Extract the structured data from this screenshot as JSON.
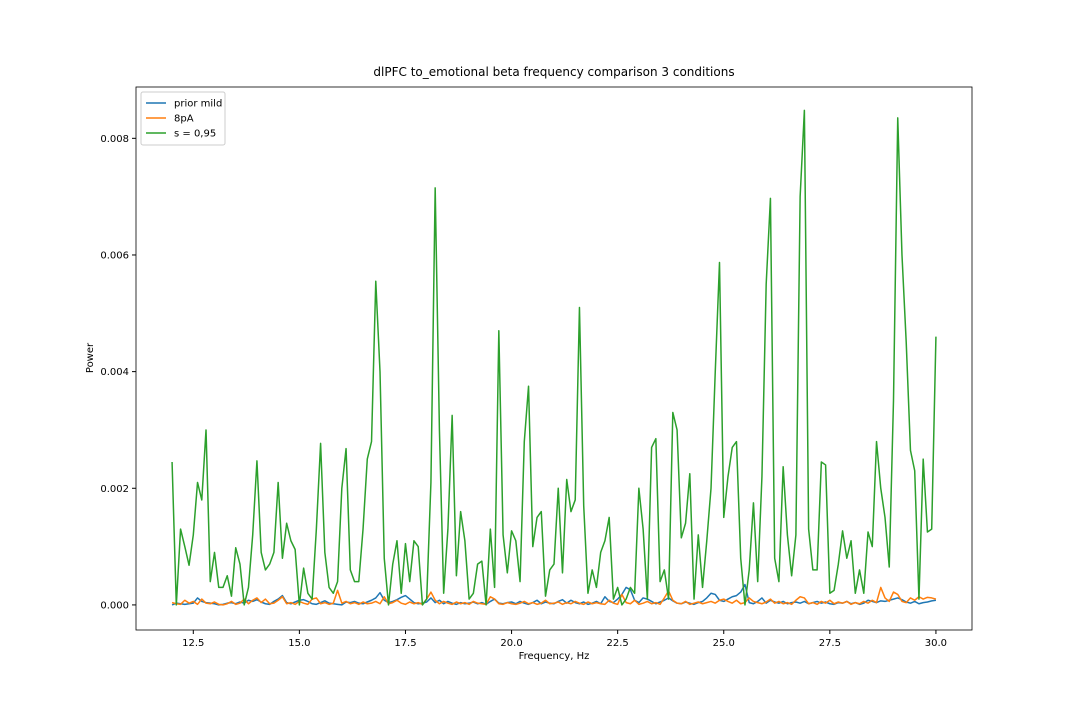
{
  "chart_data": {
    "type": "line",
    "title": "dlPFC to_emotional beta frequency comparison 3 conditions",
    "xlabel": "Frequency, Hz",
    "ylabel": "Power",
    "legend": "upper left",
    "grid": false,
    "xlim": [
      11.15,
      30.85
    ],
    "ylim": [
      -0.00043,
      0.00888
    ],
    "xticks": [
      12.5,
      {
        "value": 15,
        "label": "15.0"
      },
      17.5,
      {
        "value": 20,
        "label": "20.0"
      },
      22.5,
      {
        "value": 25,
        "label": "25.0"
      },
      27.5,
      {
        "value": 30,
        "label": "30.0"
      }
    ],
    "yticks": [
      {
        "value": 0,
        "label": "0.000"
      },
      {
        "value": 0.002,
        "label": "0.002"
      },
      {
        "value": 0.004,
        "label": "0.004"
      },
      {
        "value": 0.006,
        "label": "0.006"
      },
      {
        "value": 0.008,
        "label": "0.008"
      }
    ],
    "x": [
      12,
      12.1,
      12.2,
      12.3,
      12.4,
      12.5,
      12.6,
      12.7,
      12.8,
      12.9,
      13,
      13.1,
      13.2,
      13.3,
      13.4,
      13.5,
      13.6,
      13.7,
      13.8,
      13.9,
      14,
      14.1,
      14.2,
      14.3,
      14.4,
      14.5,
      14.6,
      14.7,
      14.8,
      14.9,
      15,
      15.1,
      15.2,
      15.3,
      15.4,
      15.5,
      15.6,
      15.7,
      15.8,
      15.9,
      16,
      16.1,
      16.2,
      16.3,
      16.4,
      16.5,
      16.6,
      16.7,
      16.8,
      16.9,
      17,
      17.1,
      17.2,
      17.3,
      17.4,
      17.5,
      17.6,
      17.7,
      17.8,
      17.9,
      18,
      18.1,
      18.2,
      18.3,
      18.4,
      18.5,
      18.6,
      18.7,
      18.8,
      18.9,
      19,
      19.1,
      19.2,
      19.3,
      19.4,
      19.5,
      19.6,
      19.7,
      19.8,
      19.9,
      20,
      20.1,
      20.2,
      20.3,
      20.4,
      20.5,
      20.6,
      20.7,
      20.8,
      20.9,
      21,
      21.1,
      21.2,
      21.3,
      21.4,
      21.5,
      21.6,
      21.7,
      21.8,
      21.9,
      22,
      22.1,
      22.2,
      22.3,
      22.4,
      22.5,
      22.6,
      22.7,
      22.8,
      22.9,
      23,
      23.1,
      23.2,
      23.3,
      23.4,
      23.5,
      23.6,
      23.7,
      23.8,
      23.9,
      24,
      24.1,
      24.2,
      24.3,
      24.4,
      24.5,
      24.6,
      24.7,
      24.8,
      24.9,
      25,
      25.1,
      25.2,
      25.3,
      25.4,
      25.5,
      25.6,
      25.7,
      25.8,
      25.9,
      26,
      26.1,
      26.2,
      26.3,
      26.4,
      26.5,
      26.6,
      26.7,
      26.8,
      26.9,
      27,
      27.1,
      27.2,
      27.3,
      27.4,
      27.5,
      27.6,
      27.7,
      27.8,
      27.9,
      28,
      28.1,
      28.2,
      28.3,
      28.4,
      28.5,
      28.6,
      28.7,
      28.8,
      28.9,
      29,
      29.1,
      29.2,
      29.3,
      29.4,
      29.5,
      29.6,
      29.7,
      29.8,
      29.9,
      30
    ],
    "series": [
      {
        "name": "prior mild",
        "color": "#1f77b4",
        "values": [
          0,
          3e-05,
          2e-05,
          1e-05,
          2e-05,
          3e-05,
          0.00012,
          6e-05,
          4e-05,
          3e-05,
          2e-05,
          0,
          1e-05,
          3e-05,
          4e-05,
          2e-05,
          5e-05,
          3e-05,
          8e-05,
          6e-05,
          9e-05,
          5e-05,
          2e-05,
          1e-05,
          6e-05,
          0.0001,
          0.00016,
          4e-05,
          2e-05,
          5e-05,
          8e-05,
          9e-05,
          6e-05,
          2e-05,
          1e-05,
          4e-05,
          7e-05,
          3e-05,
          2e-05,
          1e-05,
          0,
          5e-05,
          4e-05,
          6e-05,
          3e-05,
          2e-05,
          5e-05,
          8e-05,
          0.00012,
          0.00021,
          8e-05,
          4e-05,
          6e-05,
          9e-05,
          0.00013,
          0.00016,
          0.0001,
          4e-05,
          2e-05,
          3e-05,
          5e-05,
          0.00012,
          4e-05,
          8e-05,
          2e-05,
          6e-05,
          3e-05,
          1e-05,
          4e-05,
          2e-05,
          3e-05,
          5e-05,
          2e-05,
          4e-05,
          1e-05,
          6e-05,
          0.0001,
          3e-05,
          2e-05,
          4e-05,
          5e-05,
          2e-05,
          6e-05,
          3e-05,
          1e-05,
          4e-05,
          8e-05,
          2e-05,
          5e-05,
          3e-05,
          2e-05,
          6e-05,
          9e-05,
          3e-05,
          8e-05,
          4e-05,
          2e-05,
          5e-05,
          1e-05,
          3e-05,
          6e-05,
          2e-05,
          0.00014,
          6e-05,
          4e-05,
          0.0001,
          0.00018,
          0.0003,
          0.00026,
          8e-05,
          4e-05,
          0.00012,
          0.0001,
          6e-05,
          2e-05,
          5e-05,
          8e-05,
          0.00012,
          7e-05,
          3e-05,
          2e-05,
          5e-05,
          3e-05,
          1e-05,
          4e-05,
          6e-05,
          0.00012,
          0.0002,
          0.00018,
          8e-05,
          6e-05,
          0.0001,
          0.00014,
          0.00016,
          0.00022,
          0.00035,
          4e-05,
          2e-05,
          6e-05,
          0.00012,
          3e-05,
          8e-05,
          5e-05,
          3e-05,
          6e-05,
          2e-05,
          4e-05,
          5e-05,
          3e-05,
          6e-05,
          2e-05,
          4e-05,
          6e-05,
          3e-05,
          5e-05,
          2e-05,
          1e-05,
          4e-05,
          3e-05,
          6e-05,
          2e-05,
          4e-05,
          1e-05,
          3e-05,
          8e-05,
          6e-05,
          4e-05,
          7e-05,
          6e-05,
          8e-05,
          0.0001,
          0.00012,
          9e-05,
          5e-05,
          3e-05,
          6e-05,
          2e-05,
          4e-05,
          5e-05,
          7e-05,
          8e-05
        ]
      },
      {
        "name": "8pA",
        "color": "#ff7f0e",
        "values": [
          4e-05,
          2e-05,
          1e-05,
          8e-05,
          3e-05,
          6e-05,
          1e-05,
          0.0001,
          3e-05,
          2e-05,
          5e-05,
          1e-05,
          0,
          2e-05,
          6e-05,
          1e-05,
          3e-05,
          0.0001,
          2e-05,
          8e-05,
          0.00012,
          4e-05,
          0.0001,
          2e-05,
          3e-05,
          8e-05,
          0.00014,
          2e-05,
          4e-05,
          1e-05,
          6e-05,
          3e-05,
          1e-05,
          0.0001,
          0.00012,
          2e-05,
          4e-05,
          1e-05,
          3e-05,
          0.00025,
          3e-05,
          6e-05,
          2e-05,
          4e-05,
          1e-05,
          5e-05,
          2e-05,
          3e-05,
          6e-05,
          2e-05,
          0.00014,
          2e-05,
          4e-05,
          8e-05,
          3e-05,
          1e-05,
          5e-05,
          2e-05,
          4e-05,
          1e-05,
          0.0001,
          0.00022,
          8e-05,
          2e-05,
          6e-05,
          3e-05,
          1e-05,
          5e-05,
          2e-05,
          4e-05,
          1e-05,
          6e-05,
          3e-05,
          2e-05,
          1e-05,
          0.00014,
          0.0001,
          2e-05,
          1e-05,
          4e-05,
          2e-05,
          1e-05,
          3e-05,
          6e-05,
          2e-05,
          4e-05,
          1e-05,
          3e-05,
          8e-05,
          2e-05,
          3e-05,
          5e-05,
          1e-05,
          4e-05,
          2e-05,
          6e-05,
          3e-05,
          1e-05,
          5e-05,
          2e-05,
          4e-05,
          2e-05,
          1e-05,
          8e-05,
          3e-05,
          1e-05,
          0.00018,
          4e-05,
          2e-05,
          8e-05,
          1e-05,
          3e-05,
          6e-05,
          2e-05,
          4e-05,
          1e-05,
          0.00012,
          0.00024,
          8e-05,
          3e-05,
          2e-05,
          6e-05,
          1e-05,
          3e-05,
          5e-05,
          2e-05,
          4e-05,
          6e-05,
          3e-05,
          8e-05,
          0.0001,
          6e-05,
          3e-05,
          8e-05,
          2e-05,
          4e-05,
          0.00012,
          6e-05,
          4e-05,
          2e-05,
          5e-05,
          0.0001,
          3e-05,
          6e-05,
          2e-05,
          4e-05,
          1e-05,
          8e-05,
          0.00014,
          0.00012,
          2e-05,
          4e-05,
          1e-05,
          6e-05,
          3e-05,
          8e-05,
          2e-05,
          5e-05,
          3e-05,
          6e-05,
          1e-05,
          4e-05,
          2e-05,
          6e-05,
          3e-05,
          8e-05,
          4e-05,
          0.0003,
          0.00012,
          6e-05,
          0.00022,
          0.00018,
          6e-05,
          4e-05,
          0.00012,
          8e-05,
          0.00014,
          0.0001,
          0.00013,
          0.00012,
          0.0001
        ]
      },
      {
        "name": "s = 0,95",
        "color": "#2ca02c",
        "values": [
          0.00245,
          0,
          0.0013,
          0.001,
          0.00068,
          0.0012,
          0.0021,
          0.0018,
          0.003,
          0.0004,
          0.0009,
          0.0003,
          0.0003,
          0.0005,
          0.00015,
          0.00098,
          0.0007,
          0,
          0.0003,
          0.0012,
          0.00247,
          0.0009,
          0.0006,
          0.0007,
          0.0009,
          0.0021,
          0.0008,
          0.0014,
          0.0011,
          0.00095,
          0,
          0.00063,
          0.0002,
          0.0001,
          0.0013,
          0.00277,
          0.0009,
          0.0003,
          0.0002,
          0.0004,
          0.002,
          0.00268,
          0.0006,
          0.0004,
          0.0004,
          0.0013,
          0.0025,
          0.0028,
          0.00555,
          0.004,
          0.0008,
          0,
          0.0007,
          0.0011,
          0.0002,
          0.00105,
          0.0004,
          0.0011,
          0.001,
          0,
          0.0001,
          0.0021,
          0.00715,
          0.003,
          0.0002,
          0.0013,
          0.00325,
          0.0005,
          0.0016,
          0.0011,
          0.0001,
          0.0002,
          0.0007,
          0.00075,
          0,
          0.0013,
          0.0003,
          0.0047,
          0.0012,
          0.00055,
          0.00127,
          0.0011,
          0.0004,
          0.0028,
          0.00375,
          0.001,
          0.0015,
          0.0016,
          0.00015,
          0.0006,
          0.0007,
          0.002,
          0.00055,
          0.00215,
          0.0016,
          0.0018,
          0.0051,
          0.0017,
          0.0002,
          0.0006,
          0.0003,
          0.0009,
          0.0011,
          0.0015,
          0.0001,
          0.0003,
          0,
          0.0001,
          0.0003,
          0.0002,
          0.002,
          0.0013,
          0.0001,
          0.0027,
          0.00285,
          0.0004,
          0.0006,
          0.0001,
          0.0033,
          0.003,
          0.00115,
          0.0014,
          0.00225,
          0.0001,
          0.0012,
          0.0003,
          0.0011,
          0.002,
          0.004,
          0.00587,
          0.0015,
          0.0022,
          0.0027,
          0.0028,
          0.0008,
          0,
          0.0006,
          0.00175,
          0.0004,
          0.0022,
          0.0055,
          0.00697,
          0.0008,
          0.0004,
          0.00237,
          0.0012,
          0.0005,
          0.0012,
          0.007,
          0.00848,
          0.0013,
          0.0006,
          0.0006,
          0.00245,
          0.0024,
          0.0002,
          0.00025,
          0.0007,
          0.00127,
          0.0008,
          0.0011,
          0.0002,
          0.0006,
          0.0002,
          0.00125,
          0.001,
          0.0028,
          0.002,
          0.0015,
          0.00065,
          0.0035,
          0.00835,
          0.006,
          0.0045,
          0.00265,
          0.0023,
          0.0001,
          0.0025,
          0.00125,
          0.0013,
          0.0046
        ]
      }
    ]
  }
}
